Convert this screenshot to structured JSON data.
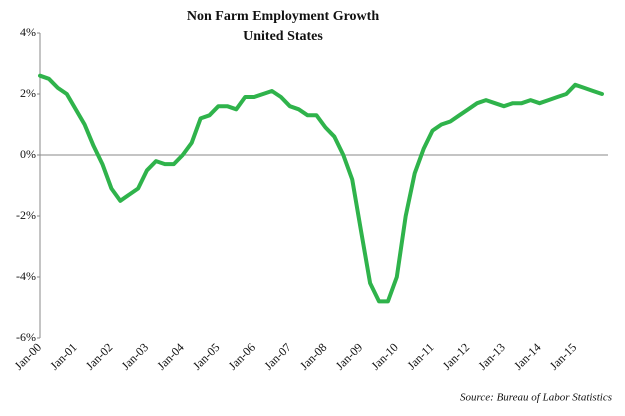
{
  "chart_data": {
    "type": "line",
    "title": "Non Farm Employment Growth",
    "subtitle": "United States",
    "source": "Source: Bureau of Labor Statistics",
    "categories": [
      "Jan-00",
      null,
      null,
      null,
      "Jan-01",
      null,
      null,
      null,
      "Jan-02",
      null,
      null,
      null,
      "Jan-03",
      null,
      null,
      null,
      "Jan-04",
      null,
      null,
      null,
      "Jan-05",
      null,
      null,
      null,
      "Jan-06",
      null,
      null,
      null,
      "Jan-07",
      null,
      null,
      null,
      "Jan-08",
      null,
      null,
      null,
      "Jan-09",
      null,
      null,
      null,
      "Jan-10",
      null,
      null,
      null,
      "Jan-11",
      null,
      null,
      null,
      "Jan-12",
      null,
      null,
      null,
      "Jan-13",
      null,
      null,
      null,
      "Jan-14",
      null,
      null,
      null,
      "Jan-15",
      null,
      null,
      null
    ],
    "values": [
      2.6,
      2.5,
      2.2,
      2.0,
      1.5,
      1.0,
      0.3,
      -0.3,
      -1.1,
      -1.5,
      -1.3,
      -1.1,
      -0.5,
      -0.2,
      -0.3,
      -0.3,
      0.0,
      0.4,
      1.2,
      1.3,
      1.6,
      1.6,
      1.5,
      1.9,
      1.9,
      2.0,
      2.1,
      1.9,
      1.6,
      1.5,
      1.3,
      1.3,
      0.9,
      0.6,
      0.0,
      -0.8,
      -2.5,
      -4.2,
      -4.8,
      -4.8,
      -4.0,
      -2.0,
      -0.6,
      0.2,
      0.8,
      1.0,
      1.1,
      1.3,
      1.5,
      1.7,
      1.8,
      1.7,
      1.6,
      1.7,
      1.7,
      1.8,
      1.7,
      1.8,
      1.9,
      2.0,
      2.3,
      2.2,
      2.1,
      2.0
    ],
    "color": "#2fb34b",
    "ylim": [
      -6,
      4
    ],
    "yticks": [
      {
        "value": 4,
        "label": "4%"
      },
      {
        "value": 2,
        "label": "2%"
      },
      {
        "value": 0,
        "label": "0%"
      },
      {
        "value": -2,
        "label": "-2%"
      },
      {
        "value": -4,
        "label": "-4%"
      },
      {
        "value": -6,
        "label": "-6%"
      }
    ]
  }
}
